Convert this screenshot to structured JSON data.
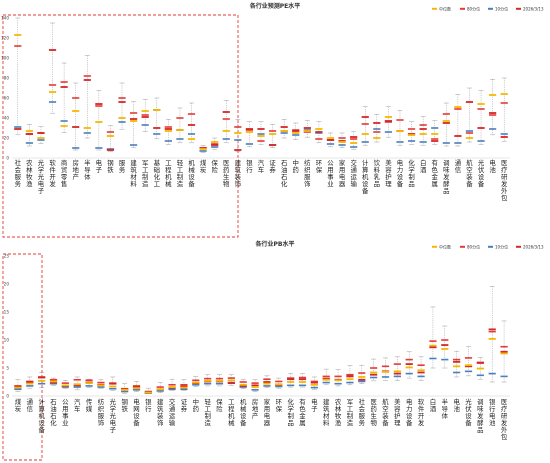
{
  "colors": {
    "median": "#f5b800",
    "p80": "#e53935",
    "p10": "#4a7ebd",
    "current": "#d62728",
    "whisker": "#9e9e9e",
    "highlight_box": "#e53935"
  },
  "legend_labels": [
    "中位数",
    "80分位",
    "10分位",
    "2026/3/13"
  ],
  "chart_data": [
    {
      "type": "range",
      "title": "各行业预测PE水平",
      "ylim": [
        0,
        140
      ],
      "yticks": [
        0,
        20,
        40,
        60,
        80,
        100,
        120,
        140
      ],
      "highlight_count": 19,
      "categories": [
        "社会服务",
        "农林牧渔",
        "光学光电子",
        "软件开发",
        "商贸零售",
        "房地产",
        "半导体",
        "电子",
        "钢铁",
        "服务",
        "建筑材料",
        "军工制造",
        "基础化工",
        "工程机械",
        "轻工制造",
        "机械设备",
        "煤炭",
        "保险",
        "医药生物",
        "建筑装饰",
        "银行",
        "汽车",
        "证券",
        "石油石化",
        "中药",
        "纺织服饰",
        "环保",
        "公用事业",
        "家用电器",
        "交通运输",
        "计算机设备",
        "饮料乳品",
        "美容护理",
        "电力设备",
        "化学制品",
        "白酒",
        "有色金属",
        "调味发酵品",
        "通信",
        "航空装备",
        "光伏设备",
        "电池",
        "医疗研发外包"
      ],
      "series": [
        {
          "name": "中位数",
          "values": [
            123,
            27,
            20,
            66,
            32,
            47,
            30,
            36,
            22,
            40,
            37,
            47,
            48,
            27,
            28,
            19,
            9,
            16,
            27,
            25,
            26,
            22,
            24,
            27,
            25,
            27,
            29,
            20,
            16,
            15,
            24,
            20,
            41,
            27,
            23,
            24,
            24,
            37,
            51,
            20,
            54,
            63,
            64
          ]
        },
        {
          "name": "80分位",
          "values": [
            112,
            24,
            25,
            73,
            76,
            60,
            82,
            52,
            26,
            60,
            45,
            43,
            48,
            31,
            40,
            44,
            10,
            14,
            39,
            31,
            28,
            17,
            27,
            27,
            28,
            26,
            19,
            18,
            20,
            19,
            34,
            26,
            36,
            38,
            29,
            33,
            19,
            44,
            49,
            25,
            49,
            43,
            55
          ]
        },
        {
          "name": "10分位",
          "values": [
            31,
            15,
            18,
            56,
            37,
            10,
            25,
            10,
            9,
            36,
            13,
            33,
            24,
            17,
            19,
            24,
            7,
            11,
            19,
            18,
            14,
            24,
            13,
            25,
            23,
            28,
            25,
            14,
            13,
            11,
            16,
            29,
            26,
            16,
            17,
            16,
            30,
            15,
            15,
            27,
            17,
            29,
            24
          ]
        },
        {
          "name": "2026/3/13",
          "values": [
            29,
            24,
            25,
            108,
            71,
            31,
            78,
            54,
            8,
            56,
            39,
            41,
            30,
            29,
            28,
            33,
            10,
            13,
            46,
            8,
            29,
            29,
            13,
            31,
            27,
            30,
            26,
            18,
            17,
            21,
            41,
            35,
            37,
            27,
            24,
            29,
            17,
            35,
            22,
            56,
            30,
            45,
            21
          ]
        }
      ]
    },
    {
      "type": "range",
      "title": "各行业PB水平",
      "ylim": [
        0,
        25
      ],
      "yticks": [
        0,
        5,
        10,
        15,
        20,
        25
      ],
      "highlight_count": 3,
      "categories": [
        "煤炭",
        "通信",
        "计算机设备",
        "石油石化",
        "公用事业",
        "汽车",
        "传媒",
        "纺织服饰",
        "光学光电子",
        "钢铁",
        "电网设备",
        "银行",
        "建筑装饰",
        "交通运输",
        "证券",
        "中药",
        "轻工制造",
        "保险",
        "工程机械",
        "机械设备",
        "房地产",
        "家用电器",
        "环保",
        "化学制品",
        "有色金属",
        "电子",
        "建筑材料",
        "农林牧渔",
        "军工制造",
        "社会服务",
        "医药生物",
        "航空装备",
        "美容护理",
        "电力设备",
        "软件开发",
        "白酒",
        "半导体",
        "电池",
        "光伏设备",
        "调味发酵品",
        "银行电池",
        "医疗研发外包"
      ],
      "series": [
        {
          "name": "中位数",
          "values": [
            1.5,
            2.2,
            2.7,
            2.6,
            1.9,
            2.1,
            2.3,
            1.9,
            1.7,
            1.1,
            1.4,
            0.6,
            1.2,
            1.6,
            1.5,
            2.4,
            2.7,
            2.7,
            2.8,
            2.0,
            1.6,
            2.2,
            2.1,
            2.5,
            2.5,
            2.0,
            2.9,
            2.8,
            3.0,
            3.4,
            4.2,
            4.3,
            4.4,
            5.1,
            4.6,
            9.0,
            8.4,
            5.3,
            5.5,
            4.9,
            10.2,
            7.6
          ]
        },
        {
          "name": "80分位",
          "values": [
            1.8,
            2.6,
            3.4,
            2.9,
            2.3,
            2.9,
            2.8,
            2.4,
            2.3,
            1.3,
            1.8,
            0.8,
            1.6,
            2.0,
            2.0,
            2.8,
            3.1,
            3.1,
            3.2,
            2.5,
            2.3,
            3.0,
            2.6,
            3.2,
            3.3,
            2.6,
            3.5,
            3.5,
            3.8,
            4.1,
            5.0,
            5.3,
            5.7,
            6.5,
            5.5,
            9.8,
            10.0,
            6.5,
            6.8,
            6.0,
            11.5,
            8.8
          ]
        },
        {
          "name": "10分位",
          "values": [
            1.2,
            1.8,
            2.2,
            2.2,
            1.6,
            1.6,
            1.8,
            1.6,
            1.3,
            0.8,
            1.1,
            0.5,
            0.9,
            1.2,
            1.2,
            2.0,
            2.2,
            2.2,
            2.4,
            1.6,
            1.1,
            1.8,
            1.7,
            1.9,
            1.9,
            1.5,
            2.4,
            2.2,
            2.4,
            2.6,
            3.3,
            3.4,
            3.5,
            4.0,
            3.5,
            6.7,
            6.5,
            4.2,
            4.4,
            3.7,
            4.0,
            3.5
          ]
        },
        {
          "name": "2026/3/13",
          "values": [
            1.7,
            2.5,
            3.3,
            2.4,
            1.8,
            1.9,
            2.4,
            2.0,
            2.2,
            1.2,
            1.6,
            0.6,
            1.2,
            1.5,
            1.7,
            2.3,
            2.6,
            2.6,
            2.3,
            1.8,
            1.9,
            2.5,
            2.0,
            3.0,
            3.0,
            2.4,
            3.1,
            2.9,
            3.5,
            2.9,
            3.8,
            4.4,
            4.0,
            5.7,
            4.2,
            8.7,
            9.1,
            6.1,
            5.3,
            5.9,
            11.9,
            7.9
          ]
        },
        {
          "name": "最高",
          "values": [
            2.9,
            3.4,
            4.2,
            3.2,
            2.8,
            3.4,
            3.0,
            2.9,
            3.4,
            2.2,
            2.6,
            1.4,
            2.4,
            3.0,
            2.9,
            3.5,
            3.8,
            3.8,
            3.8,
            3.0,
            2.9,
            3.6,
            3.2,
            4.0,
            4.0,
            3.4,
            4.8,
            4.7,
            5.4,
            5.5,
            6.6,
            6.8,
            7.0,
            7.9,
            7.0,
            15.9,
            12.5,
            8.0,
            8.8,
            6.9,
            19.6,
            13.4
          ]
        },
        {
          "name": "最低",
          "values": [
            0.8,
            1.4,
            1.5,
            1.9,
            1.3,
            1.1,
            1.5,
            1.3,
            1.0,
            0.5,
            0.8,
            0.4,
            0.6,
            1.0,
            1.0,
            1.7,
            1.8,
            1.8,
            1.9,
            1.3,
            0.8,
            1.5,
            1.4,
            1.6,
            1.6,
            1.2,
            2.0,
            1.8,
            2.0,
            2.2,
            2.7,
            2.8,
            2.8,
            3.2,
            2.8,
            5.0,
            5.0,
            3.4,
            3.6,
            3.0,
            2.5,
            2.5
          ]
        }
      ]
    }
  ]
}
